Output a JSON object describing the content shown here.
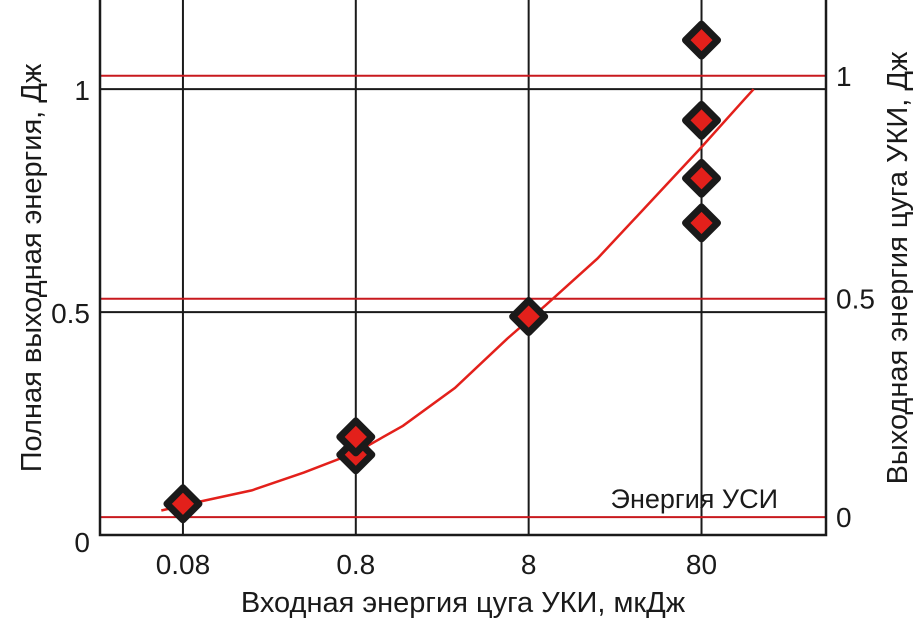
{
  "chart_data": {
    "type": "scatter",
    "xscale": "log",
    "xlabel": "Входная энергия цуга УКИ, мкДж",
    "ylabel_left": "Полная выходная энергия, Дж",
    "ylabel_right": "Выходная энергия цуга УКИ, Дж",
    "x_ticks": [
      {
        "value": 0.08,
        "label": "0.08"
      },
      {
        "value": 0.8,
        "label": "0.8"
      },
      {
        "value": 8,
        "label": "8"
      },
      {
        "value": 80,
        "label": "80"
      }
    ],
    "xlim": [
      0.0265,
      420
    ],
    "y_left": {
      "ylim": [
        0,
        1.2
      ],
      "ticks": [
        {
          "value": 0,
          "label": "0"
        },
        {
          "value": 0.5,
          "label": "0.5"
        },
        {
          "value": 1,
          "label": "1"
        }
      ]
    },
    "y_right": {
      "ticks": [
        {
          "value": 0,
          "label": "0",
          "left_equiv": 0.04
        },
        {
          "value": 0.5,
          "label": "0.5",
          "left_equiv": 0.53
        },
        {
          "value": 1,
          "label": "1",
          "left_equiv": 1.03
        }
      ]
    },
    "annotation": "Энергия УСИ",
    "points": [
      {
        "x": 0.08,
        "y": 0.07
      },
      {
        "x": 0.8,
        "y": 0.18
      },
      {
        "x": 0.8,
        "y": 0.22
      },
      {
        "x": 8,
        "y": 0.49
      },
      {
        "x": 80,
        "y": 0.7
      },
      {
        "x": 80,
        "y": 0.8
      },
      {
        "x": 80,
        "y": 0.93
      },
      {
        "x": 80,
        "y": 1.11
      }
    ],
    "fit_curve": [
      {
        "x": 0.06,
        "y": 0.055
      },
      {
        "x": 0.1,
        "y": 0.075
      },
      {
        "x": 0.2,
        "y": 0.1
      },
      {
        "x": 0.4,
        "y": 0.14
      },
      {
        "x": 0.8,
        "y": 0.185
      },
      {
        "x": 1.5,
        "y": 0.245
      },
      {
        "x": 3,
        "y": 0.33
      },
      {
        "x": 6,
        "y": 0.44
      },
      {
        "x": 10,
        "y": 0.515
      },
      {
        "x": 20,
        "y": 0.62
      },
      {
        "x": 40,
        "y": 0.745
      },
      {
        "x": 80,
        "y": 0.87
      },
      {
        "x": 140,
        "y": 0.975
      },
      {
        "x": 160,
        "y": 1.0
      }
    ],
    "colors": {
      "marker_fill": "#e3201b",
      "marker_edge": "#1a1a1a",
      "fit_line": "#e3201b",
      "grid_black": "#1a1a1a",
      "grid_red": "#c8191e"
    }
  }
}
